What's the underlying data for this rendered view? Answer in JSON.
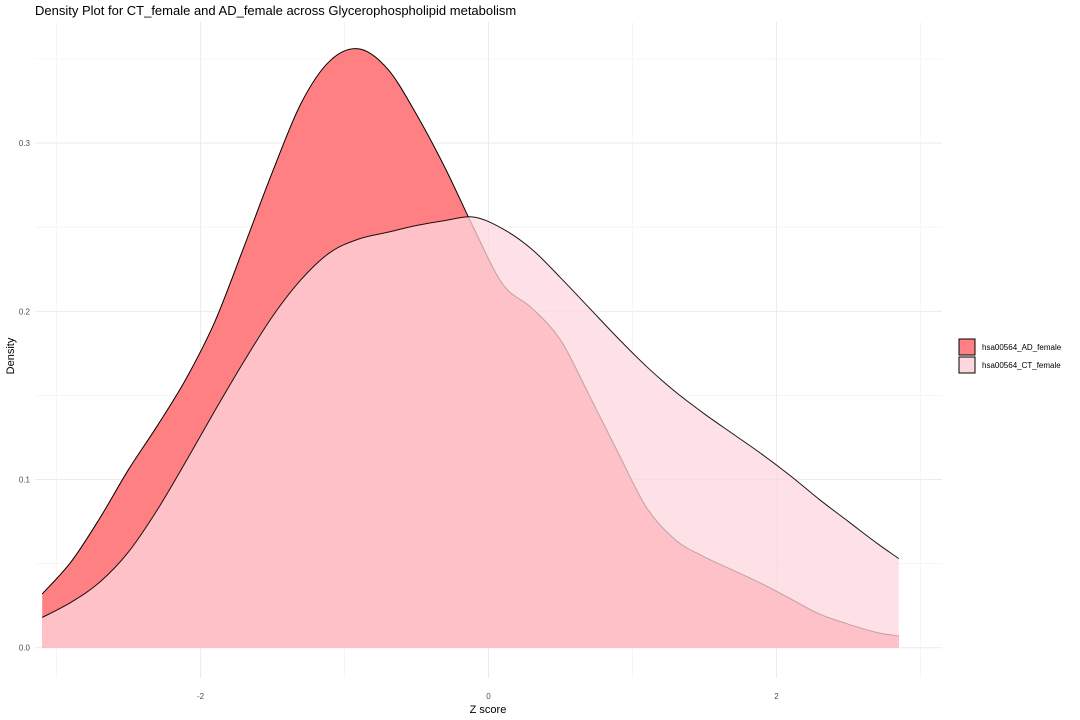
{
  "chart_data": {
    "type": "area",
    "title": "Density Plot for CT_female and AD_female across Glycerophospholipid metabolism",
    "xlabel": "Z score",
    "ylabel": "Density",
    "xlim": [
      -3.15,
      3.15
    ],
    "ylim": [
      -0.018,
      0.372
    ],
    "x_ticks": [
      -2,
      0,
      2
    ],
    "x_tick_labels": [
      "-2",
      "0",
      "2"
    ],
    "y_ticks": [
      0.0,
      0.1,
      0.2,
      0.3
    ],
    "y_tick_labels": [
      "0.0",
      "0.1",
      "0.2",
      "0.3"
    ],
    "grid": true,
    "legend_position": "right",
    "series": [
      {
        "name": "hsa00564_AD_female",
        "color": "#ff8082",
        "x": [
          -3.1,
          -2.9,
          -2.7,
          -2.5,
          -2.3,
          -2.1,
          -1.9,
          -1.7,
          -1.5,
          -1.3,
          -1.1,
          -0.9,
          -0.7,
          -0.5,
          -0.3,
          -0.1,
          0.1,
          0.3,
          0.5,
          0.7,
          0.9,
          1.1,
          1.3,
          1.5,
          1.7,
          1.9,
          2.1,
          2.3,
          2.5,
          2.7,
          2.85
        ],
        "values": [
          0.032,
          0.051,
          0.077,
          0.106,
          0.132,
          0.16,
          0.194,
          0.238,
          0.283,
          0.324,
          0.349,
          0.356,
          0.344,
          0.317,
          0.285,
          0.249,
          0.216,
          0.202,
          0.183,
          0.15,
          0.116,
          0.083,
          0.064,
          0.054,
          0.046,
          0.038,
          0.029,
          0.02,
          0.014,
          0.009,
          0.007
        ]
      },
      {
        "name": "hsa00564_CT_female",
        "color": "#fdd7de",
        "x": [
          -3.1,
          -2.9,
          -2.7,
          -2.5,
          -2.3,
          -2.1,
          -1.9,
          -1.7,
          -1.5,
          -1.3,
          -1.1,
          -0.9,
          -0.7,
          -0.5,
          -0.3,
          -0.1,
          0.1,
          0.3,
          0.5,
          0.7,
          0.9,
          1.1,
          1.3,
          1.5,
          1.7,
          1.9,
          2.1,
          2.3,
          2.5,
          2.7,
          2.85
        ],
        "values": [
          0.018,
          0.027,
          0.039,
          0.057,
          0.082,
          0.111,
          0.141,
          0.17,
          0.197,
          0.219,
          0.235,
          0.243,
          0.247,
          0.251,
          0.254,
          0.256,
          0.249,
          0.237,
          0.22,
          0.202,
          0.184,
          0.167,
          0.152,
          0.139,
          0.127,
          0.115,
          0.102,
          0.088,
          0.075,
          0.062,
          0.053
        ]
      }
    ]
  }
}
